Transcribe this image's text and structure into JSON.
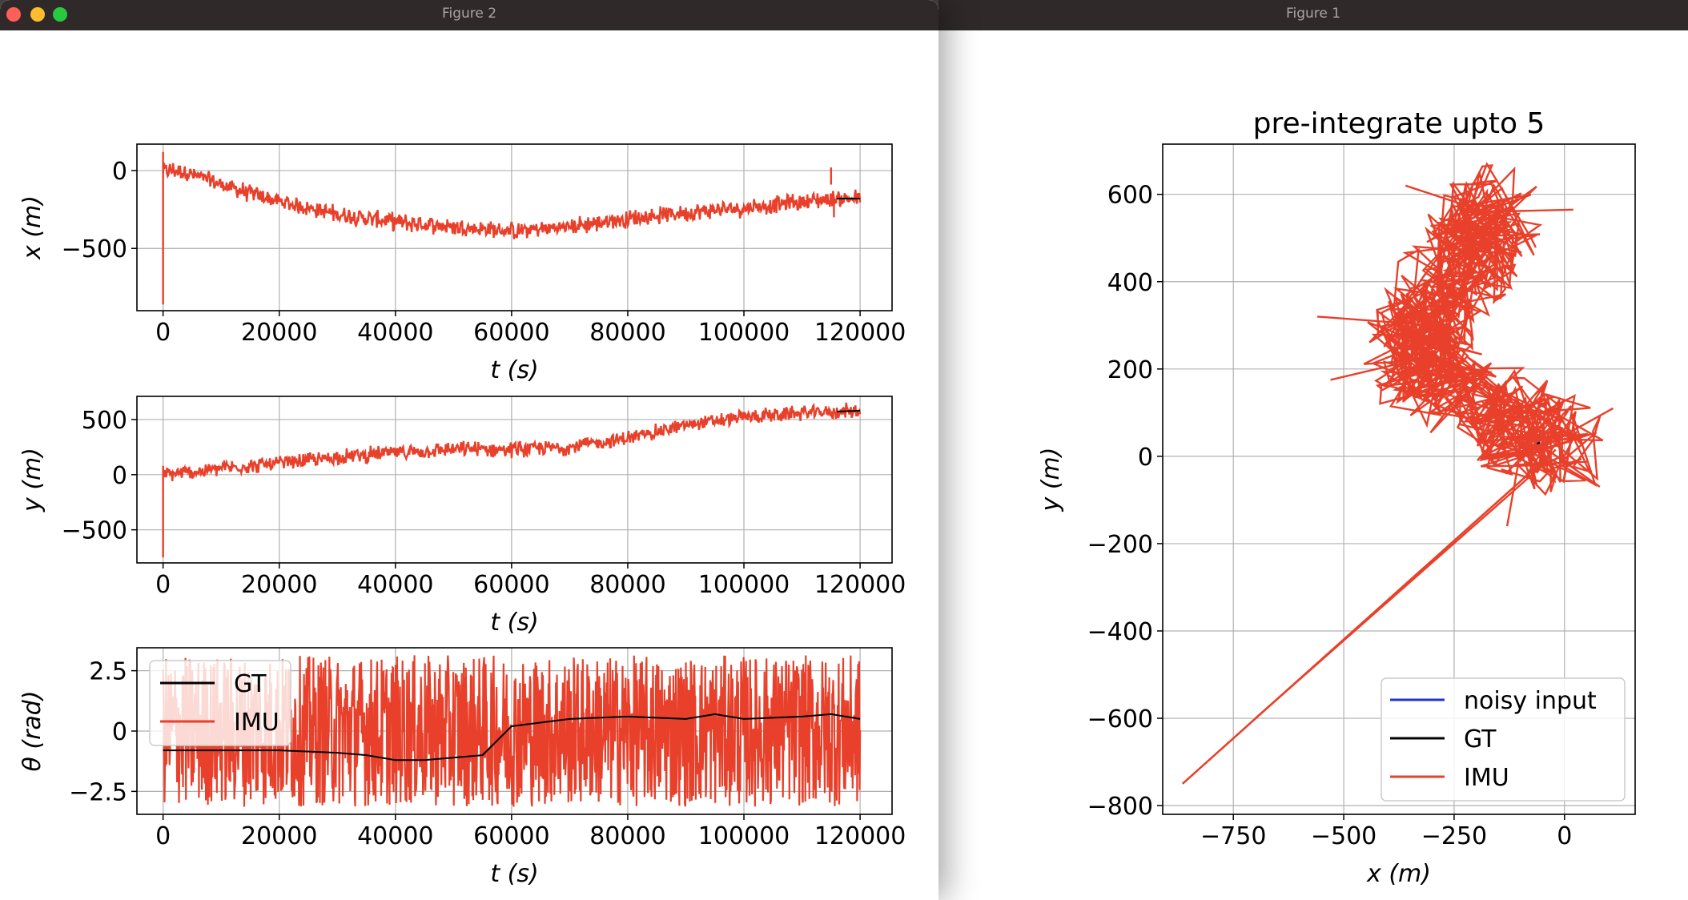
{
  "windows": {
    "figure2": {
      "title": "Figure 2"
    },
    "figure1": {
      "title": "Figure 1"
    }
  },
  "colors": {
    "gt": "#000000",
    "imu": "#e8402a",
    "noisy": "#2233cc"
  },
  "chart_data": [
    {
      "type": "line",
      "xlabel": "t (s)",
      "ylabel": "x (m)",
      "xlim": [
        -4500,
        125500
      ],
      "ylim": [
        -900,
        170
      ],
      "xticks": [
        0,
        20000,
        40000,
        60000,
        80000,
        100000,
        120000
      ],
      "yticks": [
        0,
        -500
      ],
      "grid": true,
      "series": [
        {
          "name": "IMU",
          "x": [
            0,
            3000,
            10000,
            20000,
            30000,
            40000,
            50000,
            60000,
            70000,
            80000,
            90000,
            100000,
            110000,
            115000,
            120000
          ],
          "y": [
            0,
            0,
            -90,
            -200,
            -280,
            -330,
            -360,
            -390,
            -360,
            -310,
            -270,
            -240,
            -200,
            -180,
            -180
          ]
        }
      ]
    },
    {
      "type": "line",
      "xlabel": "t (s)",
      "ylabel": "y (m)",
      "xlim": [
        -4500,
        125500
      ],
      "ylim": [
        -800,
        710
      ],
      "xticks": [
        0,
        20000,
        40000,
        60000,
        80000,
        100000,
        120000
      ],
      "yticks": [
        500,
        0,
        -500
      ],
      "grid": true,
      "series": [
        {
          "name": "IMU",
          "x": [
            0,
            5000,
            10000,
            20000,
            30000,
            40000,
            50000,
            60000,
            70000,
            80000,
            90000,
            100000,
            110000,
            120000
          ],
          "y": [
            0,
            20,
            60,
            100,
            160,
            200,
            230,
            230,
            250,
            330,
            450,
            520,
            560,
            580
          ]
        }
      ]
    },
    {
      "type": "line",
      "xlabel": "t (s)",
      "ylabel": "θ (rad)",
      "xlim": [
        -4500,
        125500
      ],
      "ylim": [
        -3.45,
        3.45
      ],
      "xticks": [
        0,
        20000,
        40000,
        60000,
        80000,
        100000,
        120000
      ],
      "yticks": [
        2.5,
        0.0,
        -2.5
      ],
      "grid": true,
      "legend": {
        "position": "upper-left",
        "entries": [
          "GT",
          "IMU"
        ]
      },
      "series": [
        {
          "name": "GT",
          "x": [
            0,
            10000,
            20000,
            30000,
            35000,
            40000,
            45000,
            55000,
            60000,
            70000,
            80000,
            90000,
            95000,
            100000,
            110000,
            115000,
            120000
          ],
          "y": [
            -0.8,
            -0.8,
            -0.8,
            -0.9,
            -1.0,
            -1.2,
            -1.2,
            -1.0,
            0.2,
            0.5,
            0.6,
            0.5,
            0.7,
            0.5,
            0.6,
            0.7,
            0.5
          ]
        },
        {
          "name": "IMU",
          "amplitude": 3.14,
          "note_range": [
            -3.14,
            3.14
          ]
        }
      ]
    },
    {
      "type": "line",
      "title": "pre-integrate upto 5",
      "xlabel": "x (m)",
      "ylabel": "y (m)",
      "xlim": [
        -910,
        160
      ],
      "ylim": [
        -820,
        715
      ],
      "xticks": [
        -750,
        -500,
        -250,
        0
      ],
      "yticks": [
        600,
        400,
        200,
        0,
        -200,
        -400,
        -600,
        -800
      ],
      "grid": true,
      "legend": {
        "position": "lower-right",
        "entries": [
          "noisy input",
          "GT",
          "IMU"
        ]
      },
      "series": [
        {
          "name": "noisy input",
          "x": [
            -60,
            -55
          ],
          "y": [
            30,
            32
          ]
        },
        {
          "name": "GT",
          "x": [
            -60,
            -55
          ],
          "y": [
            30,
            32
          ]
        },
        {
          "name": "IMU",
          "x": [
            -860,
            -20,
            -60,
            -150,
            -250,
            -330,
            -340,
            -290,
            -220,
            -180,
            -150
          ],
          "y": [
            -750,
            20,
            40,
            100,
            150,
            210,
            280,
            360,
            450,
            520,
            560
          ]
        }
      ]
    }
  ]
}
